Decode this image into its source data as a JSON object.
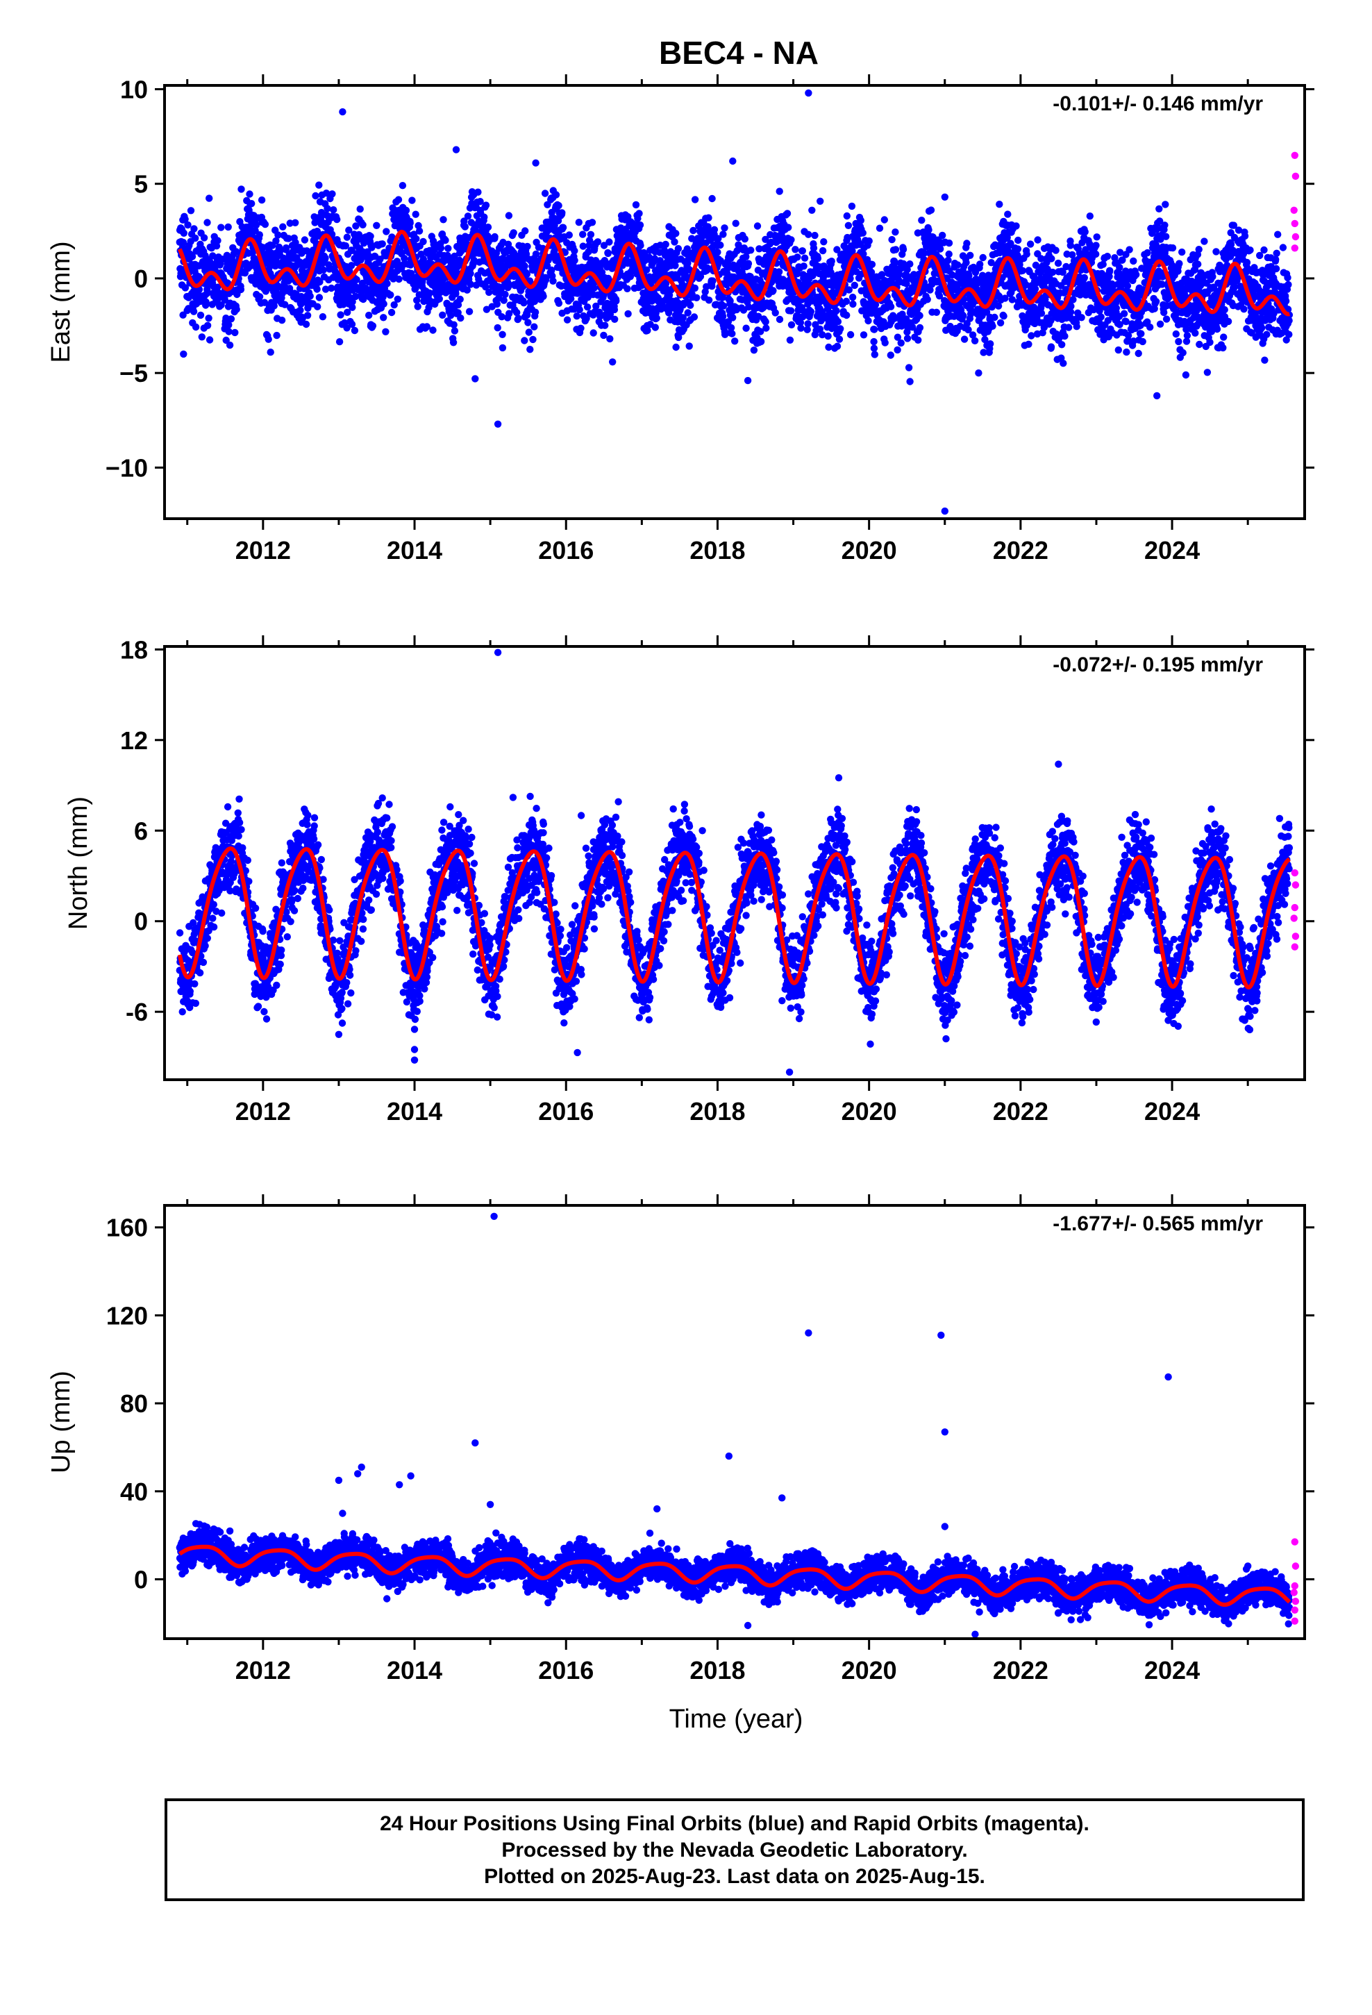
{
  "title": "BEC4 - NA",
  "xlabel": "Time (year)",
  "xticks": [
    "2012",
    "2014",
    "2016",
    "2018",
    "2020",
    "2022",
    "2024"
  ],
  "colors": {
    "final": "#0000ff",
    "rapid": "#ff00ff",
    "model": "#ff0000"
  },
  "footer": {
    "line1": "24 Hour Positions Using Final Orbits (blue) and Rapid Orbits (magenta).",
    "line2": "Processed by the Nevada Geodetic Laboratory.",
    "line3": "Plotted on 2025-Aug-23. Last data on 2025-Aug-15."
  },
  "chart_data": [
    {
      "type": "scatter",
      "ylabel": "East (mm)",
      "rate": "-0.101+/- 0.146 mm/yr",
      "xlim": [
        2010.7,
        2025.75
      ],
      "ylim": [
        -12.7,
        10.2
      ],
      "yticks": [
        10,
        5,
        0,
        -5,
        -10
      ],
      "ytick_labels": [
        "10",
        "5",
        "0",
        "−5",
        "−10"
      ],
      "x_start": 2010.9,
      "x_end": 2025.55,
      "seasonal": {
        "amp1": 0.85,
        "phase1": 0.6,
        "amp2": 0.75,
        "phase2": 0.2,
        "noise": 1.25
      },
      "trend_knots": [
        [
          2010.9,
          0.3
        ],
        [
          2014,
          0.9
        ],
        [
          2017,
          0.2
        ],
        [
          2020,
          -0.4
        ],
        [
          2023,
          -0.6
        ],
        [
          2025.55,
          -0.9
        ]
      ],
      "outliers": [
        [
          2013.05,
          8.8
        ],
        [
          2014.55,
          6.8
        ],
        [
          2015.1,
          -7.7
        ],
        [
          2015.6,
          6.1
        ],
        [
          2018.2,
          6.2
        ],
        [
          2018.4,
          -5.4
        ],
        [
          2019.2,
          9.8
        ],
        [
          2021.0,
          -12.3
        ],
        [
          2021.0,
          4.3
        ],
        [
          2023.8,
          -6.2
        ],
        [
          2012.1,
          -3.9
        ],
        [
          2010.95,
          -4.0
        ],
        [
          2014.8,
          -5.3
        ]
      ],
      "rapid": [
        [
          2025.62,
          6.5
        ],
        [
          2025.63,
          5.4
        ],
        [
          2025.61,
          3.6
        ],
        [
          2025.62,
          2.9
        ],
        [
          2025.63,
          2.2
        ],
        [
          2025.62,
          1.6
        ]
      ]
    },
    {
      "type": "scatter",
      "ylabel": "North (mm)",
      "rate": "-0.072+/- 0.195 mm/yr",
      "xlim": [
        2010.7,
        2025.75
      ],
      "ylim": [
        -10.5,
        18.2
      ],
      "yticks": [
        18,
        12,
        6,
        0,
        -6
      ],
      "ytick_labels": [
        "18",
        "12",
        "6",
        "0",
        "-6"
      ],
      "x_start": 2010.9,
      "x_end": 2025.55,
      "seasonal": {
        "amp1": 4.2,
        "phase1": 0.28,
        "amp2": 0.6,
        "phase2": 0.1,
        "noise": 1.35
      },
      "trend_knots": [
        [
          2010.9,
          1.0
        ],
        [
          2025.55,
          0.3
        ]
      ],
      "outliers": [
        [
          2015.1,
          17.8
        ],
        [
          2015.3,
          8.2
        ],
        [
          2016.2,
          7.0
        ],
        [
          2014.0,
          -8.5
        ],
        [
          2014.0,
          -9.2
        ],
        [
          2016.15,
          -8.7
        ],
        [
          2018.95,
          -10.0
        ],
        [
          2019.6,
          9.5
        ],
        [
          2022.5,
          10.4
        ],
        [
          2013.0,
          -7.5
        ],
        [
          2017.8,
          6.0
        ]
      ],
      "rapid": [
        [
          2025.62,
          3.2
        ],
        [
          2025.63,
          2.4
        ],
        [
          2025.62,
          0.9
        ],
        [
          2025.61,
          0.2
        ],
        [
          2025.63,
          -1.0
        ],
        [
          2025.62,
          -1.7
        ]
      ]
    },
    {
      "type": "scatter",
      "ylabel": "Up (mm)",
      "rate": "-1.677+/- 0.565 mm/yr",
      "xlim": [
        2010.7,
        2025.75
      ],
      "ylim": [
        -27,
        170
      ],
      "yticks": [
        160,
        120,
        80,
        40,
        0
      ],
      "ytick_labels": [
        "160",
        "120",
        "80",
        "40",
        "0"
      ],
      "x_start": 2010.9,
      "x_end": 2025.55,
      "seasonal": {
        "amp1": 4.0,
        "phase1": 0.95,
        "amp2": 0.8,
        "phase2": 0.3,
        "noise": 4.0
      },
      "trend_knots": [
        [
          2010.9,
          12
        ],
        [
          2014,
          7
        ],
        [
          2018,
          3
        ],
        [
          2022,
          -3
        ],
        [
          2025.55,
          -8
        ]
      ],
      "outliers": [
        [
          2015.05,
          165
        ],
        [
          2019.2,
          112
        ],
        [
          2020.95,
          111
        ],
        [
          2021.0,
          67
        ],
        [
          2023.95,
          92
        ],
        [
          2014.8,
          62
        ],
        [
          2018.15,
          56
        ],
        [
          2013.3,
          51
        ],
        [
          2013.25,
          48
        ],
        [
          2013.0,
          45
        ],
        [
          2013.95,
          47
        ],
        [
          2013.8,
          43
        ],
        [
          2018.85,
          37
        ],
        [
          2017.2,
          32
        ],
        [
          2015.0,
          34
        ],
        [
          2021.0,
          24
        ],
        [
          2013.05,
          30
        ],
        [
          2021.4,
          -25
        ],
        [
          2018.4,
          -21
        ]
      ],
      "rapid": [
        [
          2025.62,
          17
        ],
        [
          2025.63,
          6
        ],
        [
          2025.62,
          -3
        ],
        [
          2025.61,
          -6
        ],
        [
          2025.63,
          -10
        ],
        [
          2025.62,
          -14
        ],
        [
          2025.62,
          -19
        ]
      ]
    }
  ]
}
